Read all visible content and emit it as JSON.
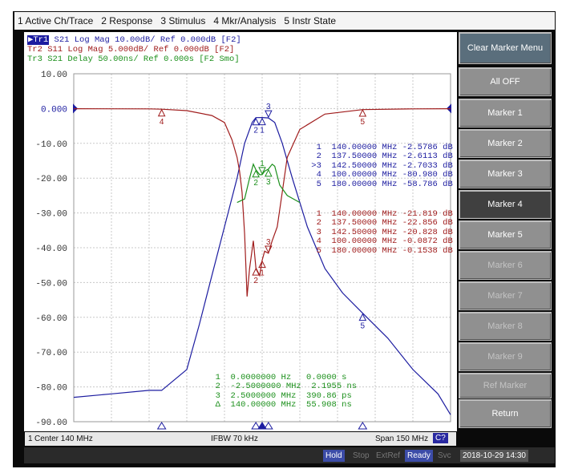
{
  "menu": [
    "1 Active Ch/Trace",
    "2 Response",
    "3 Stimulus",
    "4 Mkr/Analysis",
    "5 Instr State"
  ],
  "traces": [
    {
      "id": "Tr1",
      "label": "S21 Log Mag 10.00dB/ Ref 0.000dB [F2]",
      "color": "#1c1ca0"
    },
    {
      "id": "Tr2",
      "label": "Tr2 S11 Log Mag 5.000dB/ Ref 0.000dB [F2]",
      "color": "#a01c1c"
    },
    {
      "id": "Tr3",
      "label": "Tr3 S21 Delay 50.00ns/ Ref 0.000s [F2 Smo]",
      "color": "#1c901c"
    }
  ],
  "y_ticks": [
    "10.00",
    "0.000",
    "-10.00",
    "-20.00",
    "-30.00",
    "-40.00",
    "-50.00",
    "-60.00",
    "-70.00",
    "-80.00",
    "-90.00"
  ],
  "marker_tables": {
    "tr1": [
      {
        "num": "1",
        "stim": "140.00000 MHz",
        "resp": "-2.5786 dB"
      },
      {
        "num": "2",
        "stim": "137.50000 MHz",
        "resp": "-2.6113 dB"
      },
      {
        "num": ">3",
        "stim": "142.50000 MHz",
        "resp": "-2.7033 dB"
      },
      {
        "num": "4",
        "stim": "100.00000 MHz",
        "resp": "-80.980 dB"
      },
      {
        "num": "5",
        "stim": "180.00000 MHz",
        "resp": "-58.786 dB"
      }
    ],
    "tr2": [
      {
        "num": "1",
        "stim": "140.00000 MHz",
        "resp": "-21.819 dB"
      },
      {
        "num": "2",
        "stim": "137.50000 MHz",
        "resp": "-22.856 dB"
      },
      {
        "num": "3",
        "stim": "142.50000 MHz",
        "resp": "-20.828 dB"
      },
      {
        "num": "4",
        "stim": "100.00000 MHz",
        "resp": "-0.0872 dB"
      },
      {
        "num": "5",
        "stim": "180.00000 MHz",
        "resp": "-0.1538 dB"
      }
    ],
    "tr3": [
      {
        "num": "1",
        "stim": "0.0000000 Hz",
        "resp": "0.0000 s"
      },
      {
        "num": "2",
        "stim": "-2.5000000 MHz",
        "resp": "2.1955 ns"
      },
      {
        "num": "3",
        "stim": "2.5000000 MHz",
        "resp": "390.86 ps"
      },
      {
        "num": "Δ",
        "stim": "140.00000 MHz",
        "resp": "55.908 ns"
      }
    ]
  },
  "marker_flags": {
    "tr1": [
      "1",
      "2",
      "3",
      "4",
      "5"
    ],
    "tr2": [
      "1",
      "2",
      "3",
      "4",
      "5"
    ],
    "tr3": [
      "1",
      "2",
      "3"
    ]
  },
  "softkeys": [
    {
      "label": "Clear Marker Menu",
      "state": "header"
    },
    {
      "label": "All OFF",
      "state": "normal"
    },
    {
      "label": "Marker 1",
      "state": "normal"
    },
    {
      "label": "Marker 2",
      "state": "normal"
    },
    {
      "label": "Marker 3",
      "state": "normal"
    },
    {
      "label": "Marker 4",
      "state": "selected"
    },
    {
      "label": "Marker 5",
      "state": "normal"
    },
    {
      "label": "Marker 6",
      "state": "disabled"
    },
    {
      "label": "Marker 7",
      "state": "disabled"
    },
    {
      "label": "Marker 8",
      "state": "disabled"
    },
    {
      "label": "Marker 9",
      "state": "disabled"
    },
    {
      "label": "Ref Marker",
      "state": "disabled"
    },
    {
      "label": "Return",
      "state": "normal"
    }
  ],
  "status": {
    "channel": "1",
    "center": "Center 140 MHz",
    "ifbw": "IFBW 70 kHz",
    "span": "Span 150 MHz",
    "cal": "C?"
  },
  "bottom": {
    "hold": "Hold",
    "stop": "Stop",
    "extref": "ExtRef",
    "ready": "Ready",
    "svc": "Svc",
    "datetime": "2018-10-29 14:30"
  },
  "scale": {
    "tr1": {
      "ref": 0,
      "per_div": 10,
      "unit": "dB"
    },
    "tr2": {
      "ref": 0,
      "per_div": 5,
      "unit": "dB"
    },
    "tr3": {
      "ref": 0,
      "per_div": 50,
      "unit": "ns"
    },
    "center_mhz": 140,
    "span_mhz": 150
  },
  "chart_data": {
    "type": "line",
    "x_range_mhz": [
      65,
      215
    ],
    "series": [
      {
        "name": "Tr1 S21 Log Mag",
        "unit": "dB",
        "x": [
          65,
          80,
          95,
          100,
          110,
          115,
          120,
          125,
          130,
          133,
          136,
          137.5,
          140,
          142.5,
          145,
          148,
          152,
          158,
          165,
          172,
          180,
          190,
          200,
          210,
          215
        ],
        "values": [
          -83,
          -82,
          -81,
          -81,
          -75,
          -62,
          -48,
          -34,
          -20,
          -10,
          -4,
          -2.6,
          -2.58,
          -2.7,
          -4,
          -10,
          -20,
          -34,
          -46,
          -53,
          -58.8,
          -66,
          -75,
          -82,
          -88
        ]
      },
      {
        "name": "Tr2 S11 Log Mag",
        "unit": "dB",
        "x": [
          65,
          95,
          100,
          110,
          120,
          125,
          128,
          130,
          131,
          132,
          133,
          134,
          135,
          136.5,
          137.5,
          139,
          140,
          141,
          142.5,
          144,
          146,
          148,
          150,
          155,
          165,
          180,
          200,
          215
        ],
        "values": [
          -0.02,
          -0.05,
          -0.09,
          -0.3,
          -1,
          -2,
          -4.5,
          -7,
          -9,
          -12,
          -18,
          -27,
          -23,
          -19,
          -22.9,
          -24,
          -21.8,
          -20.5,
          -20.8,
          -19,
          -17,
          -12,
          -7,
          -3,
          -0.8,
          -0.15,
          -0.05,
          -0.02
        ]
      },
      {
        "name": "Tr3 S21 Delay",
        "unit": "ns",
        "x": [
          130,
          133,
          135,
          136.5,
          137.5,
          139,
          140,
          141,
          142.5,
          144,
          145,
          147,
          150,
          155
        ],
        "values": [
          -135,
          -130,
          -100,
          -80,
          -88,
          -95,
          -95,
          -90,
          -87,
          -80,
          -83,
          -110,
          -125,
          -135
        ]
      }
    ]
  }
}
